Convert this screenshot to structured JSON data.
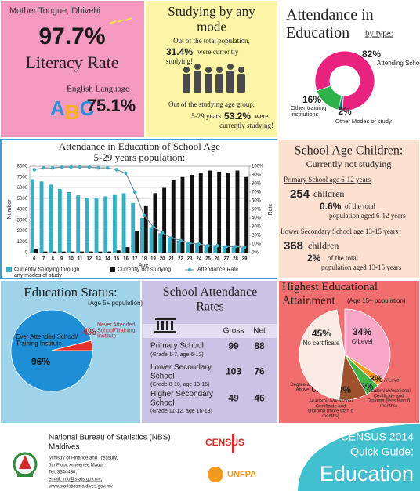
{
  "literacy": {
    "mother_tongue": "Mother Tongue, Dhivehi",
    "rate": "97.7%",
    "label": "Literacy Rate",
    "english_label": "English Language",
    "abc": "ABC",
    "english_rate": "75.1%"
  },
  "studying": {
    "title": "Studying by any mode",
    "line1": "Out of the total population,",
    "total_rate": "31.4%",
    "line2a": "were currently",
    "line2b": "studying!",
    "line3": "Out of the studying age group,",
    "age_group": "5-29 years",
    "age_rate": "53.2%",
    "line4a": "were",
    "line4b": "currently studying!"
  },
  "school_age_children": {
    "title": "School Age Children:",
    "subtitle": "Currently not studying",
    "groups": [
      {
        "heading": "Primary School age 6-12 years",
        "count": "254",
        "count_unit": "children",
        "share": "0.6%",
        "share_text_1": "of the total",
        "share_text_2": "population aged 6-12 years"
      },
      {
        "heading": "Lower Secondary School age 13-15 years",
        "count": "368",
        "count_unit": "children",
        "share": "2%",
        "share_text_1": "of the total",
        "share_text_2": "population aged 13-15 years"
      }
    ]
  },
  "attendance_rates": {
    "title": "School Attendance Rates",
    "columns": [
      "Gross",
      "Net"
    ],
    "rows": [
      {
        "name": "Primary School",
        "grades": "(Grade 1-7, age 6-12)",
        "gross": "99",
        "net": "88"
      },
      {
        "name": "Lower Secondary School",
        "grades": "(Grade 8-10, age 13-15)",
        "gross": "103",
        "net": "76"
      },
      {
        "name": "Higher Secondary School",
        "grades": "(Grade 11-12, age 16-18)",
        "gross": "49",
        "net": "46"
      }
    ]
  },
  "footer": {
    "org": "National Bureau of Statistics (NBS)",
    "country": "Maldives",
    "address_1": "Ministry of Finance and Treasury,",
    "address_2": "5th Floor, Ameenee Magu,",
    "tel": "Tel: 3344480,",
    "email": "email: info@stats.gov.mv,",
    "web": "www.statisticsmaldives.gov.mv",
    "census_logo": "CENSUS",
    "unfpa": "UNFPA",
    "guide_1": "CENSUS 2014",
    "guide_2": "Quick Guide:",
    "guide_3": "Education"
  },
  "chart_data": [
    {
      "type": "donut",
      "title": "Attendance in Education",
      "subtitle": "by type:",
      "categories": [
        "Attending School",
        "Other Modes of study",
        "Other training institutions"
      ],
      "values": [
        82,
        2,
        16
      ],
      "value_labels": [
        "82%",
        "2%",
        "16%"
      ],
      "colors": [
        "#e8237f",
        "#1b6f73",
        "#2db34a"
      ]
    },
    {
      "type": "bar-line",
      "title": "Attendance in Education of School Age",
      "subtitle": "5-29 years population:",
      "x_label": "Age",
      "y_label": "Number",
      "y2_label": "Rate",
      "categories": [
        "6",
        "7",
        "8",
        "9",
        "10",
        "11",
        "12",
        "13",
        "14",
        "15",
        "16",
        "17",
        "18",
        "19",
        "20",
        "21",
        "22",
        "23",
        "24",
        "25",
        "26",
        "27",
        "28",
        "29"
      ],
      "series": [
        {
          "name": "Currently Studying through any modes of study",
          "type": "bar",
          "color": "#3aafc4",
          "values": [
            6800,
            6600,
            6300,
            5900,
            5600,
            5300,
            5100,
            5100,
            5200,
            5400,
            5500,
            4600,
            3200,
            2300,
            1800,
            1400,
            1100,
            900,
            800,
            700,
            650,
            600,
            550,
            450
          ]
        },
        {
          "name": "Currently not studying",
          "type": "bar",
          "color": "#111111",
          "values": [
            300,
            100,
            100,
            100,
            100,
            100,
            100,
            100,
            100,
            200,
            500,
            2000,
            4300,
            5500,
            6000,
            6700,
            7000,
            7200,
            7400,
            7600,
            7500,
            7400,
            7600,
            7000
          ]
        },
        {
          "name": "Attendance Rate",
          "type": "line",
          "axis": "y2",
          "color": "#3aafc4",
          "values": [
            96,
            98,
            98,
            99,
            99,
            99,
            99,
            98,
            98,
            96,
            92,
            70,
            43,
            30,
            23,
            17,
            14,
            11,
            10,
            8,
            8,
            7,
            7,
            6
          ]
        }
      ],
      "ylim": [
        0,
        8000
      ],
      "yticks": [
        0,
        1000,
        2000,
        3000,
        4000,
        5000,
        6000,
        7000,
        8000
      ],
      "y2lim": [
        0,
        100
      ],
      "y2ticks": [
        {
          "value": 0,
          "label": "0%"
        },
        {
          "value": 10,
          "label": "10%"
        },
        {
          "value": 20,
          "label": "20%"
        },
        {
          "value": 30,
          "label": "30%"
        },
        {
          "value": 40,
          "label": "40%"
        },
        {
          "value": 50,
          "label": "50%"
        },
        {
          "value": 60,
          "label": "60%"
        },
        {
          "value": 70,
          "label": "70%"
        },
        {
          "value": 80,
          "label": "80%"
        },
        {
          "value": 90,
          "label": "90%"
        },
        {
          "value": 100,
          "label": "100%"
        }
      ],
      "grid": true
    },
    {
      "type": "pie",
      "title": "Education Status:",
      "subtitle": "(Age 5+ population)",
      "categories": [
        "Ever Attended School/ Training Institute",
        "Never Attended School/Training Institute"
      ],
      "values": [
        96,
        4
      ],
      "value_labels": [
        "96%",
        "4%"
      ],
      "colors": [
        "#1e8fd6",
        "#e8332a"
      ]
    },
    {
      "type": "pie",
      "title": "Highest Educational Attainment",
      "subtitle": "(Age 15+ population)",
      "categories": [
        "O'Level",
        "A'Level",
        "Academic/Vocational Certificate and Diploma (less than 6 months)",
        "Academic/Vocational Certificate and Diploma (more than 6 months)",
        "Degree and Above",
        "No certificate"
      ],
      "values": [
        34,
        3,
        5,
        10,
        0.2,
        45
      ],
      "value_labels": [
        "34%",
        "3%",
        "5%",
        "10%",
        "0.2%",
        "45%"
      ],
      "colors": [
        "#f7a6c6",
        "#f29a1f",
        "#43b649",
        "#a0522d",
        "#7b3f99",
        "#f9ebe3"
      ]
    }
  ]
}
